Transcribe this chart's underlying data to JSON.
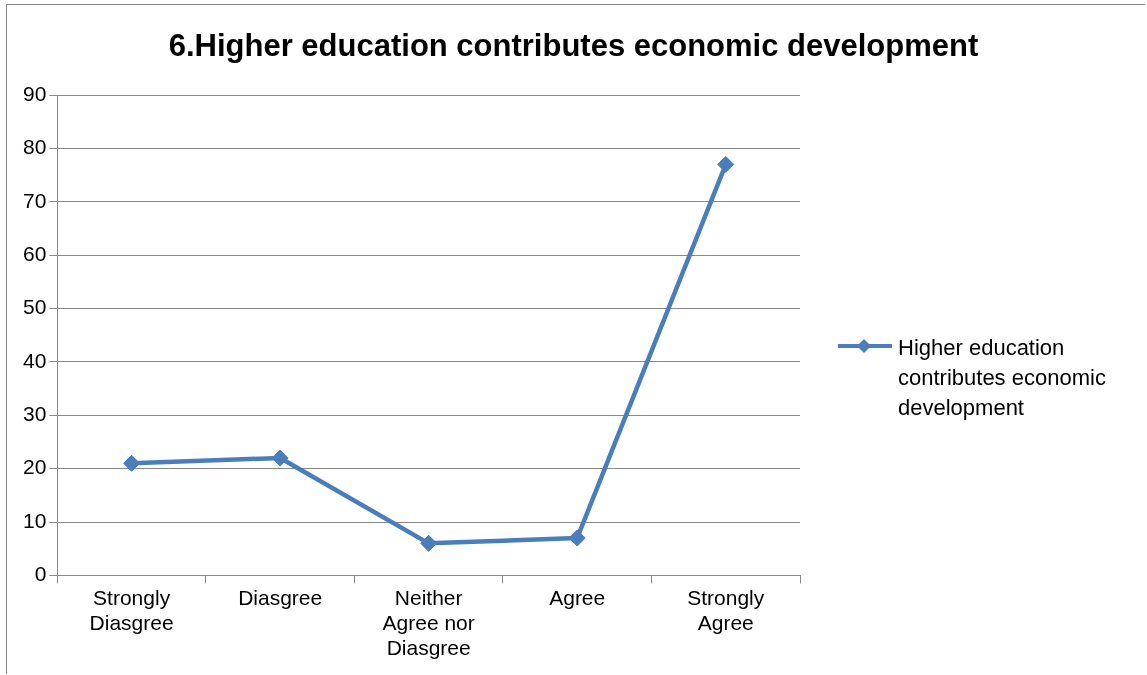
{
  "chart_data": {
    "type": "line",
    "title": "6.Higher education contributes economic development",
    "categories": [
      "Strongly Diasgree",
      "Diasgree",
      "Neither Agree nor Diasgree",
      "Agree",
      "Strongly Agree"
    ],
    "series": [
      {
        "name": "Higher education contributes economic development",
        "color": "#4a7ebb",
        "values": [
          21,
          22,
          6,
          7,
          77
        ]
      }
    ],
    "ylim": [
      0,
      90
    ],
    "yticks": [
      0,
      10,
      20,
      30,
      40,
      50,
      60,
      70,
      80,
      90
    ],
    "grid": "y",
    "legend": "right",
    "marker": "diamond",
    "line_style": "solid"
  }
}
